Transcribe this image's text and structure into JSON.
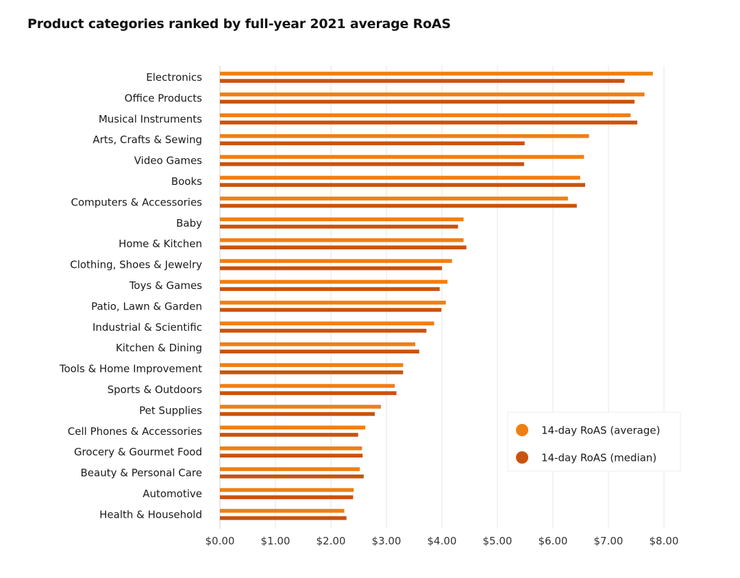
{
  "chart_data": {
    "type": "bar",
    "orientation": "horizontal",
    "title": "Product categories ranked by full-year 2021 average RoAS",
    "xlabel": "",
    "ylabel": "",
    "xlim": [
      0,
      8
    ],
    "x_ticks": [
      "$0.00",
      "$1.00",
      "$2.00",
      "$3.00",
      "$4.00",
      "$5.00",
      "$6.00",
      "$7.00",
      "$8.00"
    ],
    "grid": true,
    "legend_position": "bottom-right",
    "categories": [
      "Electronics",
      "Office Products",
      "Musical Instruments",
      "Arts, Crafts & Sewing",
      "Video Games",
      "Books",
      "Computers & Accessories",
      "Baby",
      "Home & Kitchen",
      "Clothing, Shoes & Jewelry",
      "Toys & Games",
      "Patio, Lawn & Garden",
      "Industrial & Scientific",
      "Kitchen & Dining",
      "Tools & Home Improvement",
      "Sports & Outdoors",
      "Pet Supplies",
      "Cell Phones & Accessories",
      "Grocery & Gourmet Food",
      "Beauty & Personal Care",
      "Automotive",
      "Health & Household"
    ],
    "series": [
      {
        "name": "14-day RoAS (average)",
        "color": "#F07F12",
        "values": [
          7.8,
          7.65,
          7.4,
          6.65,
          6.56,
          6.49,
          6.27,
          4.39,
          4.39,
          4.18,
          4.1,
          4.07,
          3.86,
          3.52,
          3.3,
          3.15,
          2.9,
          2.62,
          2.56,
          2.52,
          2.41,
          2.24
        ]
      },
      {
        "name": "14-day RoAS (median)",
        "color": "#C9530E",
        "values": [
          7.29,
          7.47,
          7.52,
          5.49,
          5.48,
          6.58,
          6.43,
          4.29,
          4.44,
          4.0,
          3.96,
          3.99,
          3.72,
          3.59,
          3.3,
          3.18,
          2.79,
          2.49,
          2.57,
          2.59,
          2.4,
          2.28
        ]
      }
    ]
  },
  "colors": {
    "average": "#F07F12",
    "median": "#C9530E",
    "grid": "#E4E4E4",
    "text": "#1a1a1a"
  }
}
